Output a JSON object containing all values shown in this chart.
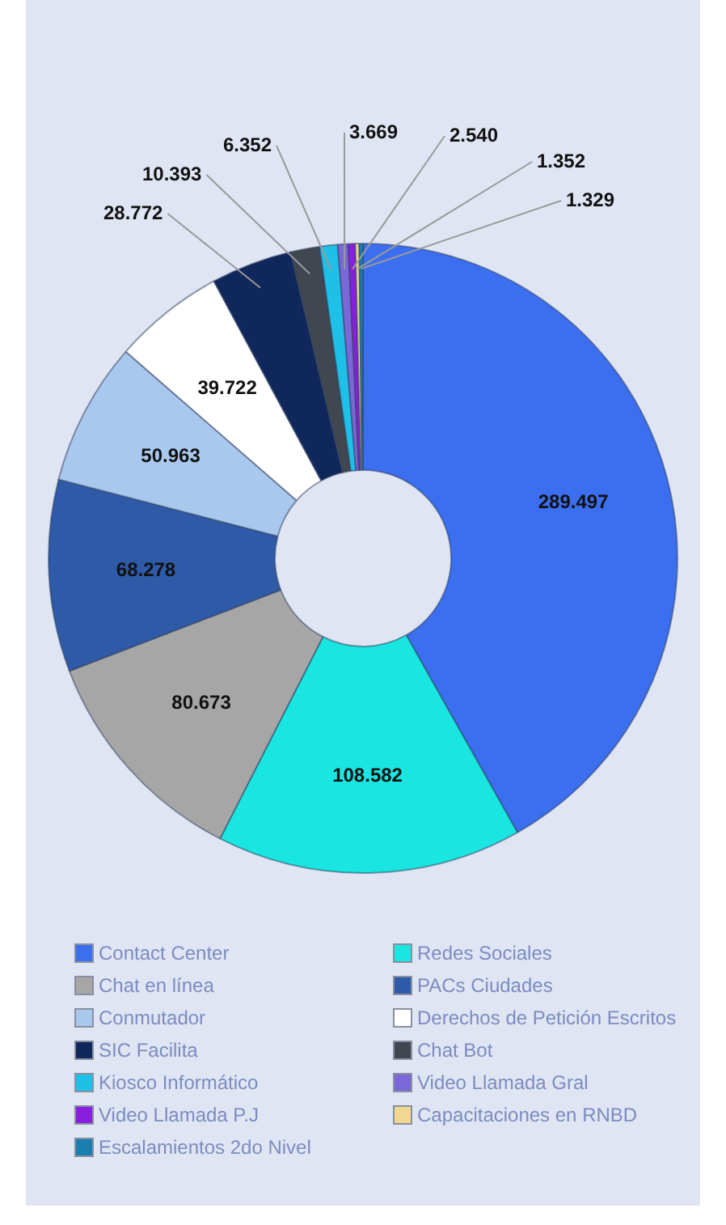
{
  "chart_data": {
    "type": "donut",
    "categories": [
      "Contact Center",
      "Redes Sociales",
      "Chat en línea",
      "PACs Ciudades",
      "Conmutador",
      "Derechos de Petición Escritos",
      "SIC Facilita",
      "Chat Bot",
      "Kiosco Informático",
      "Video Llamada Gral",
      "Video Llamada P.J",
      "Capacitaciones en RNBD",
      "Escalamientos 2do Nivel"
    ],
    "values": [
      289497,
      108582,
      80673,
      68278,
      50963,
      39722,
      28772,
      10393,
      6352,
      3669,
      2540,
      1352,
      1329
    ],
    "value_labels": [
      "289.497",
      "108.582",
      "80.673",
      "68.278",
      "50.963",
      "39.722",
      "28.772",
      "10.393",
      "6.352",
      "3.669",
      "2.540",
      "1.352",
      "1.329"
    ],
    "colors": [
      "#3b6ff0",
      "#19e6e0",
      "#a6a6a6",
      "#2e5aa8",
      "#a9c8ee",
      "#ffffff",
      "#10275c",
      "#404750",
      "#1ec0e8",
      "#7b68d8",
      "#8a1ee0",
      "#f0d890",
      "#1a7fb0"
    ],
    "legend": "bottom"
  }
}
